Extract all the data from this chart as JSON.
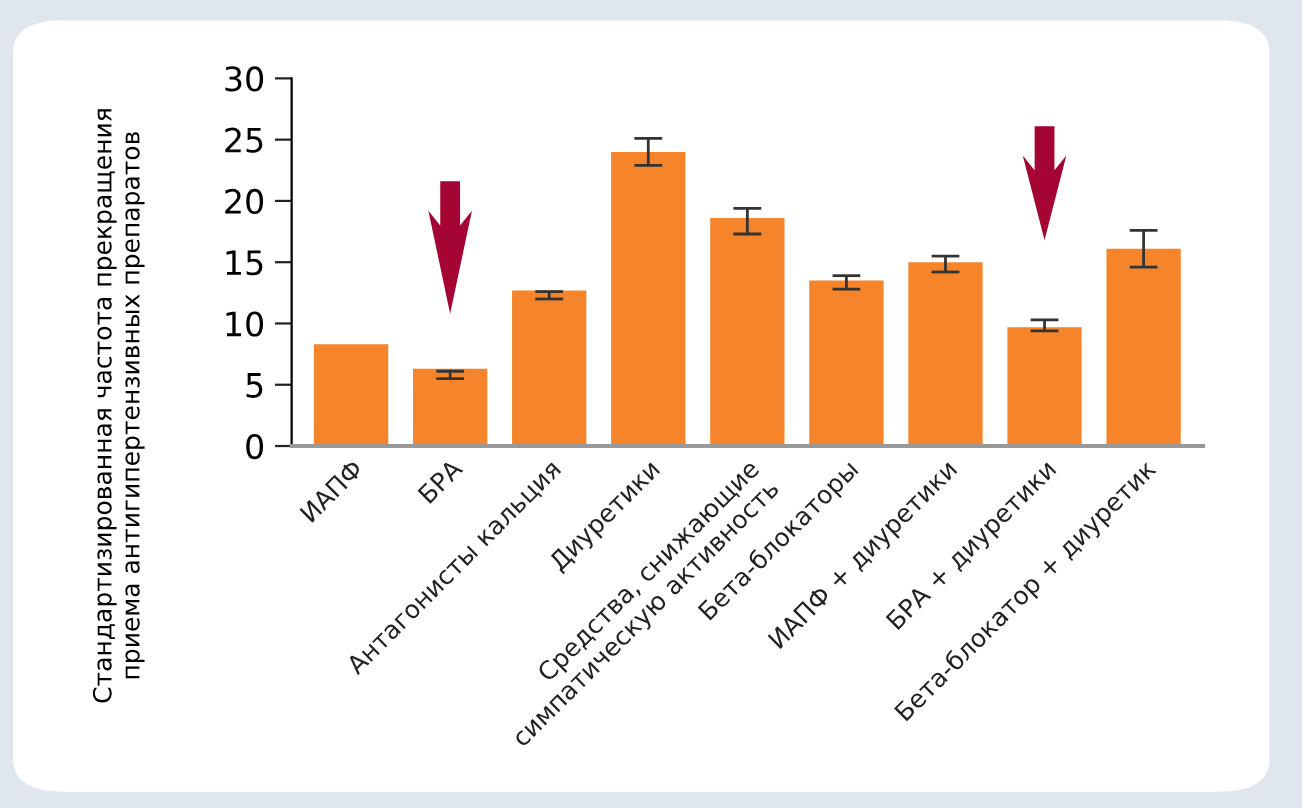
{
  "chart_data": {
    "type": "bar",
    "ylabel": "Стандартизированная частота прекращения\nприема антигипертензивных препаратов",
    "categories": [
      "ИАПФ",
      "БРА",
      "Антагонисты кальция",
      "Диуретики",
      "Средства, снижающие\nсимпатическую активность",
      "Бета-блокаторы",
      "ИАПФ + диуретики",
      "БРА + диуретики",
      "Бета-блокатор + диуретик"
    ],
    "values": [
      8.3,
      6.3,
      12.7,
      24.0,
      18.6,
      13.5,
      15.0,
      9.7,
      16.1
    ],
    "errors": [
      null,
      [
        5.5,
        6.1
      ],
      [
        12.0,
        12.6
      ],
      [
        22.9,
        25.1
      ],
      [
        17.3,
        19.4
      ],
      [
        12.8,
        13.9
      ],
      [
        14.2,
        15.5
      ],
      [
        9.4,
        10.3
      ],
      [
        14.6,
        17.6
      ]
    ],
    "color": "#f5842a",
    "ylim": [
      0,
      30
    ],
    "yticks": [
      0,
      5,
      10,
      15,
      20,
      25,
      30
    ],
    "grid": false,
    "legend": false
  }
}
